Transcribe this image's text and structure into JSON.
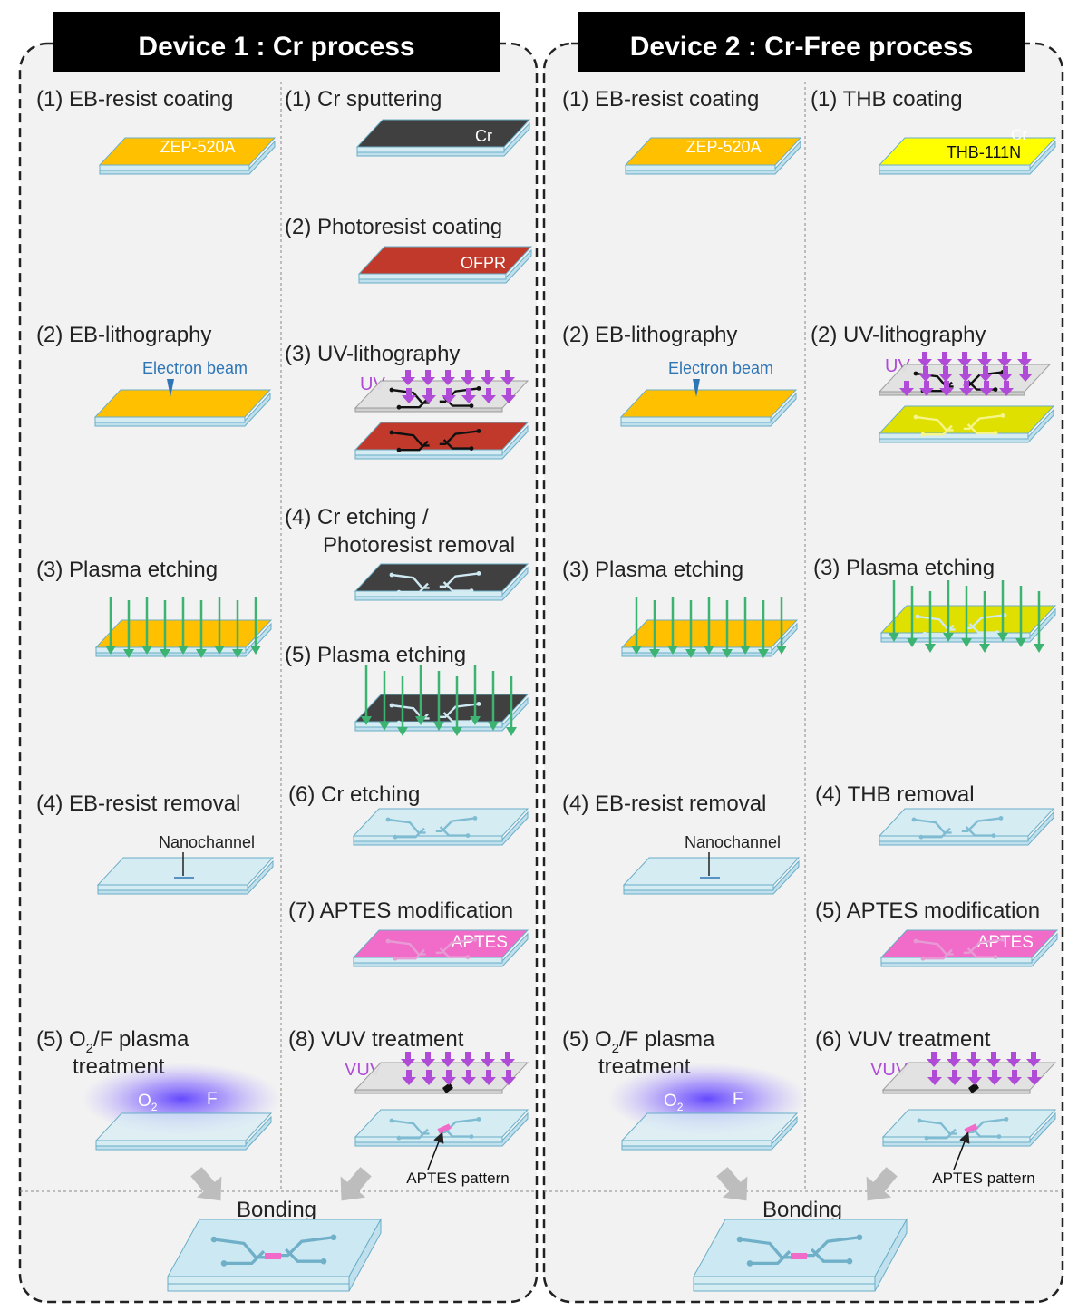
{
  "device1": {
    "title": "Device 1 : Cr process",
    "left_steps": {
      "s1": "(1) EB-resist coating",
      "s2": "(2) EB-lithography",
      "s3": "(3) Plasma etching",
      "s4": "(4) EB-resist removal",
      "s5_prefix": "(5) O",
      "s5_sub": "2",
      "s5_suffix": "/F plasma",
      "s5_line2": "treatment"
    },
    "right_steps": {
      "s1": "(1) Cr sputtering",
      "s2": "(2) Photoresist coating",
      "s3": "(3) UV-lithography",
      "s4_line1": "(4) Cr etching /",
      "s4_line2": "Photoresist removal",
      "s5": "(5) Plasma etching",
      "s6": "(6) Cr etching",
      "s7": "(7) APTES modification",
      "s8": "(8) VUV treatment"
    },
    "labels": {
      "zep": "ZEP-520A",
      "cr": "Cr",
      "ofpr": "OFPR",
      "electron_beam": "Electron beam",
      "uv": "UV",
      "nanochannel": "Nanochannel",
      "aptes": "APTES",
      "vuv": "VUV",
      "aptes_pattern": "APTES pattern",
      "o2_prefix": "O",
      "o2_sub": "2",
      "f": "F",
      "bonding": "Bonding"
    }
  },
  "device2": {
    "title": "Device 2 : Cr-Free process",
    "left_steps": {
      "s1": "(1) EB-resist coating",
      "s2": "(2) EB-lithography",
      "s3": "(3) Plasma etching",
      "s4": "(4) EB-resist removal",
      "s5_prefix": "(5) O",
      "s5_sub": "2",
      "s5_suffix": "/F plasma",
      "s5_line2": "treatment"
    },
    "right_steps": {
      "s1": "(1) THB coating",
      "s2": "(2) UV-lithography",
      "s3": "(3) Plasma etching",
      "s4": "(4) THB removal",
      "s5": "(5) APTES modification",
      "s6": "(6) VUV treatment"
    },
    "labels": {
      "zep": "ZEP-520A",
      "thb": "THB-111N",
      "cr_faint": "Cr",
      "electron_beam": "Electron beam",
      "uv": "UV",
      "nanochannel": "Nanochannel",
      "aptes": "APTES",
      "vuv": "VUV",
      "aptes_pattern": "APTES pattern",
      "o2_prefix": "O",
      "o2_sub": "2",
      "f": "F",
      "bonding": "Bonding"
    }
  },
  "colors": {
    "panel_bg": "#f2f2f2",
    "title_bg": "#000000",
    "zep": "#ffc000",
    "cr": "#404040",
    "ofpr": "#c0392b",
    "thb": "#ffff00",
    "thb_exposed": "#e0e000",
    "glass": "#d6ecf3",
    "aptes": "#f06cc8",
    "uv_arrow": "#b04bd8",
    "plasma_arrow": "#3cb371",
    "electron_beam_text": "#2e75b6"
  }
}
